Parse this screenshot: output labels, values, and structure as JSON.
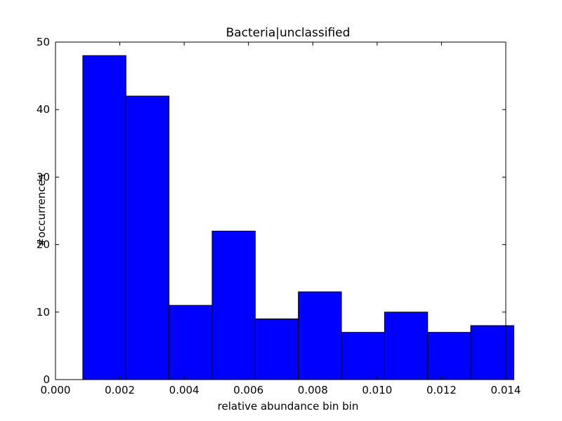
{
  "chart_data": {
    "type": "bar",
    "title": "Bacteria|unclassified",
    "xlabel": "relative abundance bin bin",
    "ylabel": "#occurrences",
    "xlim": [
      0.0,
      0.014
    ],
    "ylim": [
      0,
      50
    ],
    "x_ticks": [
      "0.000",
      "0.002",
      "0.004",
      "0.006",
      "0.008",
      "0.010",
      "0.012",
      "0.014"
    ],
    "y_ticks": [
      "0",
      "10",
      "20",
      "30",
      "40",
      "50"
    ],
    "bin_edges": [
      0.00085,
      0.00219,
      0.00353,
      0.00487,
      0.00621,
      0.00755,
      0.00889,
      0.01023,
      0.01157,
      0.01291,
      0.01425
    ],
    "values": [
      48,
      42,
      11,
      22,
      9,
      13,
      7,
      10,
      7,
      8
    ],
    "grid": false,
    "colors": {
      "bar_fill": "#0000ff",
      "bar_edge": "#000000",
      "axes": "#000000"
    }
  }
}
